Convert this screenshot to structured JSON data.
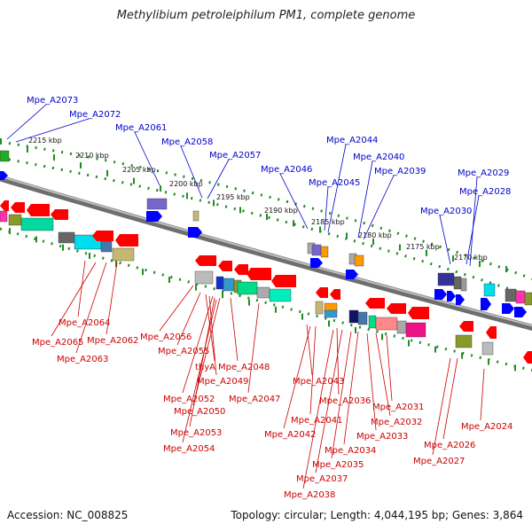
{
  "title": "Methylibium petroleiphilum PM1, complete genome",
  "footer": {
    "accession": "Accession: NC_008825",
    "topology": "Topology: circular; Length: 4,044,195 bp; Genes: 3,864"
  },
  "colors": {
    "forward_label": "#0000cc",
    "reverse_label": "#cc0000",
    "forward_gene": "#0000ff",
    "reverse_gene": "#ff0000",
    "backbone": "#888888",
    "ruler_dots": "#228b22"
  },
  "bp_scale": [
    "2215 kbp",
    "2210 kbp",
    "2205 kbp",
    "2200 kbp",
    "2195 kbp",
    "2190 kbp",
    "2185 kbp",
    "2180 kbp",
    "2175 kbp",
    "2170 kbp"
  ],
  "forward_genes": [
    "Mpe_A2073",
    "Mpe_A2072",
    "Mpe_A2061",
    "Mpe_A2058",
    "Mpe_A2057",
    "Mpe_A2046",
    "Mpe_A2045",
    "Mpe_A2044",
    "Mpe_A2040",
    "Mpe_A2039",
    "Mpe_A2030",
    "Mpe_A2029",
    "Mpe_A2028"
  ],
  "reverse_genes": [
    "Mpe_A2064",
    "Mpe_A2065",
    "Mpe_A2062",
    "Mpe_A2063",
    "Mpe_A2056",
    "Mpe_A2055",
    "thyA",
    "Mpe_A2048",
    "Mpe_A2049",
    "Mpe_A2052",
    "Mpe_A2047",
    "Mpe_A2050",
    "Mpe_A2053",
    "Mpe_A2054",
    "Mpe_A2043",
    "Mpe_A2036",
    "Mpe_A2041",
    "Mpe_A2031",
    "Mpe_A2032",
    "Mpe_A2042",
    "Mpe_A2033",
    "Mpe_A2034",
    "Mpe_A2035",
    "Mpe_A2037",
    "Mpe_A2038",
    "Mpe_A2024",
    "Mpe_A2026",
    "Mpe_A2027"
  ]
}
